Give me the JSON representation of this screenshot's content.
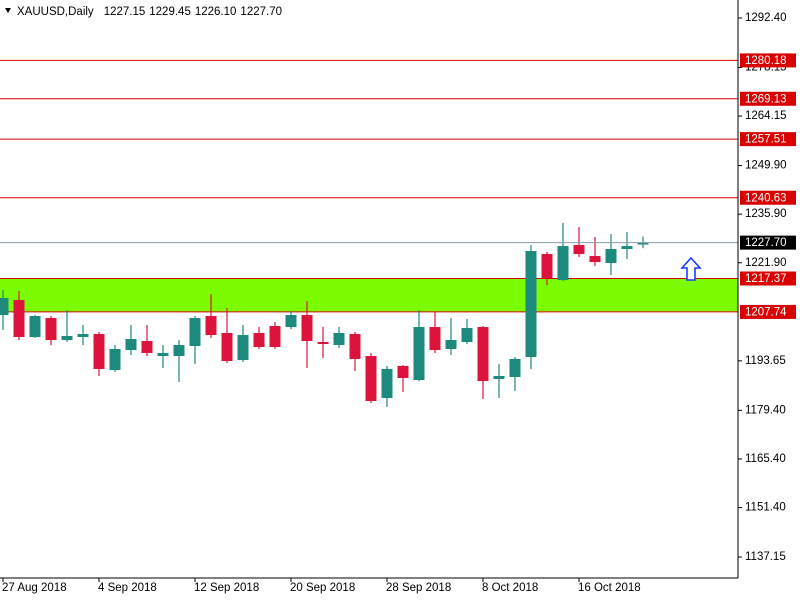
{
  "chart_data": {
    "type": "candlestick",
    "header": {
      "symbol": "XAUUSD,Daily",
      "ohlc": [
        "1227.15",
        "1229.45",
        "1226.10",
        "1227.70"
      ]
    },
    "categories": [
      "27 Aug 2018",
      null,
      null,
      null,
      null,
      null,
      "4 Sep 2018",
      null,
      null,
      null,
      null,
      null,
      "12 Sep 2018",
      null,
      null,
      null,
      null,
      null,
      "20 Sep 2018",
      null,
      null,
      null,
      null,
      null,
      "28 Sep 2018",
      null,
      null,
      null,
      null,
      null,
      "8 Oct 2018",
      null,
      null,
      null,
      null,
      null,
      "16 Oct 2018",
      null,
      null,
      null,
      null
    ],
    "open": [
      1206.85,
      1211.17,
      1200.52,
      1205.99,
      1199.65,
      1200.52,
      1201.38,
      1191.02,
      1196.77,
      1199.37,
      1195.05,
      1195.05,
      1197.93,
      1206.56,
      1201.67,
      1193.9,
      1201.67,
      1203.68,
      1203.39,
      1206.85,
      1199.08,
      1198.21,
      1201.38,
      1195.05,
      1182.95,
      1192.17,
      1188.14,
      1203.39,
      1197.06,
      1199.08,
      1203.39,
      1188.43,
      1189.0,
      1194.76,
      1224.42,
      1216.93,
      1227.01,
      1223.84,
      1221.83,
      1225.86,
      1227.15
    ],
    "high": [
      1214.05,
      1213.76,
      1206.85,
      1206.56,
      1208.29,
      1203.97,
      1201.95,
      1198.21,
      1203.97,
      1203.97,
      1198.21,
      1199.65,
      1206.56,
      1212.9,
      1208.87,
      1203.97,
      1203.39,
      1204.83,
      1208.0,
      1210.88,
      1203.39,
      1203.39,
      1201.95,
      1195.91,
      1192.17,
      1192.46,
      1208.29,
      1207.71,
      1205.99,
      1205.7,
      1203.68,
      1192.75,
      1194.76,
      1227.01,
      1224.99,
      1233.35,
      1232.19,
      1229.32,
      1230.18,
      1230.75,
      1229.45
    ],
    "low": [
      1202.53,
      1199.65,
      1200.23,
      1198.21,
      1199.08,
      1198.21,
      1189.29,
      1190.44,
      1195.34,
      1195.05,
      1191.6,
      1187.56,
      1192.75,
      1200.23,
      1193.04,
      1193.32,
      1197.06,
      1197.06,
      1202.82,
      1191.6,
      1194.47,
      1197.35,
      1190.73,
      1181.51,
      1180.36,
      1184.68,
      1187.85,
      1195.91,
      1195.34,
      1198.5,
      1182.66,
      1182.95,
      1184.97,
      1191.31,
      1215.49,
      1216.64,
      1223.55,
      1220.96,
      1218.37,
      1222.98,
      1226.1
    ],
    "close": [
      1211.75,
      1200.52,
      1206.56,
      1199.65,
      1200.8,
      1201.38,
      1191.31,
      1197.06,
      1199.94,
      1195.91,
      1195.91,
      1198.21,
      1205.99,
      1201.09,
      1193.61,
      1201.09,
      1197.64,
      1197.64,
      1206.85,
      1199.37,
      1198.5,
      1201.67,
      1194.19,
      1182.09,
      1191.31,
      1188.71,
      1203.39,
      1196.77,
      1199.65,
      1203.11,
      1187.85,
      1189.29,
      1194.19,
      1225.28,
      1217.51,
      1226.72,
      1224.42,
      1222.11,
      1225.86,
      1226.72,
      1227.7
    ],
    "up_color": "#1d8a7d",
    "down_color": "#dc143c",
    "levels": [
      1280.18,
      1269.13,
      1257.51,
      1240.63
    ],
    "level_color": "#d80000",
    "zone": {
      "low": 1207.74,
      "high": 1217.37,
      "color": "#7cfc00"
    },
    "current_price": {
      "value": 1227.7,
      "label": "1227.70"
    },
    "ylim": [
      1131.11,
      1297.58
    ],
    "yticks": [
      {
        "value": 1292.4,
        "label": "1292.40"
      },
      1278.15,
      1264.15,
      {
        "value": 1249.9,
        "label": "1249.90"
      },
      {
        "value": 1235.9,
        "label": "1235.90"
      },
      {
        "value": 1221.9,
        "label": "1221.90"
      },
      1193.65,
      {
        "value": 1179.4,
        "label": "1179.40"
      },
      {
        "value": 1165.4,
        "label": "1165.40"
      },
      {
        "value": 1151.4,
        "label": "1151.40"
      },
      1137.15
    ]
  }
}
